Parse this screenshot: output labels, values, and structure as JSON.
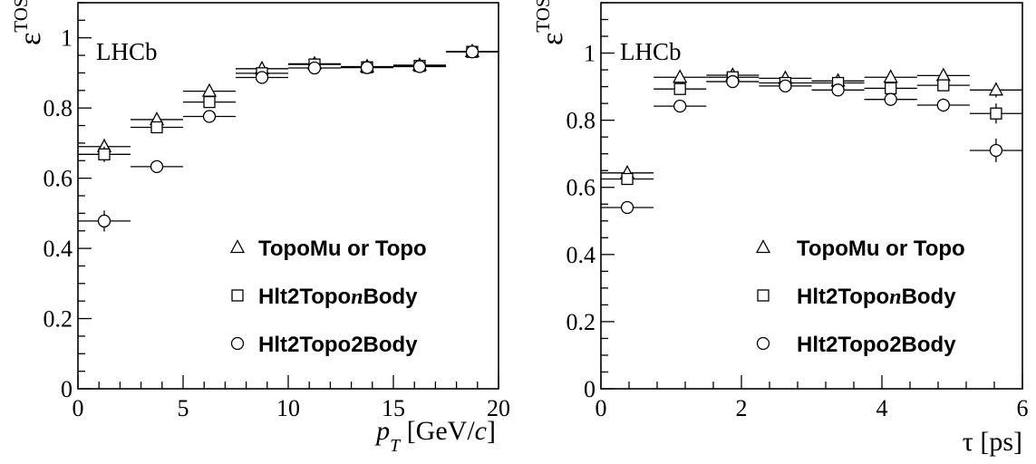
{
  "chart_data": [
    {
      "type": "scatter",
      "experiment_label": "LHCb",
      "ylabel": "ε",
      "ylabel_sup": "TOS",
      "xlabel_var": "p",
      "xlabel_sub": "T",
      "xlabel_unit_pre": " [GeV/",
      "xlabel_unit_var": "c",
      "xlabel_unit_post": "]",
      "xlim": [
        0,
        20
      ],
      "ylim": [
        0,
        1.1
      ],
      "xticks": [
        0,
        5,
        10,
        15,
        20
      ],
      "xtick_labels": [
        "0",
        "5",
        "10",
        "15",
        "20"
      ],
      "yticks": [
        0,
        0.2,
        0.4,
        0.6,
        0.8,
        1
      ],
      "ytick_labels": [
        "0",
        "0.2",
        "0.4",
        "0.6",
        "0.8",
        "1"
      ],
      "legend_position": "bottom-right",
      "series": [
        {
          "name": "TopoMu or Topo",
          "name_pre": "TopoMu or Topo",
          "name_ital": "",
          "name_post": "",
          "marker": "triangle",
          "x": [
            1.25,
            3.75,
            6.25,
            8.75,
            11.25,
            13.75,
            16.25,
            18.75
          ],
          "y": [
            0.69,
            0.767,
            0.848,
            0.912,
            0.926,
            0.918,
            0.922,
            0.961
          ],
          "yerr": [
            0.022,
            0.01,
            0.01,
            0.008,
            0.007,
            0.007,
            0.008,
            0.007
          ]
        },
        {
          "name": "Hlt2TopoNBody",
          "name_pre": "Hlt2Topo",
          "name_ital": "n",
          "name_post": "Body",
          "marker": "square",
          "x": [
            1.25,
            3.75,
            6.25,
            8.75,
            11.25,
            13.75,
            16.25,
            18.75
          ],
          "y": [
            0.668,
            0.745,
            0.817,
            0.899,
            0.924,
            0.916,
            0.92,
            0.96
          ],
          "yerr": [
            0.022,
            0.01,
            0.01,
            0.008,
            0.007,
            0.007,
            0.008,
            0.007
          ]
        },
        {
          "name": "Hlt2Topo2Body",
          "name_pre": "Hlt2Topo2Body",
          "name_ital": "",
          "name_post": "",
          "marker": "circle",
          "x": [
            1.25,
            3.75,
            6.25,
            8.75,
            11.25,
            13.75,
            16.25,
            18.75
          ],
          "y": [
            0.478,
            0.633,
            0.776,
            0.887,
            0.914,
            0.915,
            0.918,
            0.96
          ],
          "yerr": [
            0.03,
            0.01,
            0.01,
            0.008,
            0.007,
            0.007,
            0.008,
            0.007
          ]
        }
      ]
    },
    {
      "type": "scatter",
      "experiment_label": "LHCb",
      "ylabel": "ε",
      "ylabel_sup": "TOS",
      "xlabel_var": "τ",
      "xlabel_sub": "",
      "xlabel_unit_pre": " [ps]",
      "xlabel_unit_var": "",
      "xlabel_unit_post": "",
      "xlim": [
        0,
        6
      ],
      "ylim": [
        0,
        1.15
      ],
      "xticks": [
        0,
        2,
        4,
        6
      ],
      "xtick_labels": [
        "0",
        "2",
        "4",
        "6"
      ],
      "yticks": [
        0,
        0.2,
        0.4,
        0.6,
        0.8,
        1
      ],
      "ytick_labels": [
        "0",
        "0.2",
        "0.4",
        "0.6",
        "0.8",
        "1"
      ],
      "legend_position": "bottom-right",
      "series": [
        {
          "name": "TopoMu or Topo",
          "name_pre": "TopoMu or Topo",
          "name_ital": "",
          "name_post": "",
          "marker": "triangle",
          "x": [
            0.375,
            1.125,
            1.875,
            2.625,
            3.375,
            4.125,
            4.875,
            5.625
          ],
          "y": [
            0.643,
            0.928,
            0.934,
            0.925,
            0.917,
            0.928,
            0.933,
            0.89
          ],
          "yerr": [
            0.012,
            0.012,
            0.01,
            0.01,
            0.01,
            0.012,
            0.014,
            0.022
          ]
        },
        {
          "name": "Hlt2TopoNBody",
          "name_pre": "Hlt2Topo",
          "name_ital": "n",
          "name_post": "Body",
          "marker": "square",
          "x": [
            0.375,
            1.125,
            1.875,
            2.625,
            3.375,
            4.125,
            4.875,
            5.625
          ],
          "y": [
            0.625,
            0.893,
            0.928,
            0.911,
            0.911,
            0.895,
            0.904,
            0.82
          ],
          "yerr": [
            0.012,
            0.012,
            0.01,
            0.01,
            0.01,
            0.012,
            0.016,
            0.03
          ]
        },
        {
          "name": "Hlt2Topo2Body",
          "name_pre": "Hlt2Topo2Body",
          "name_ital": "",
          "name_post": "",
          "marker": "circle",
          "x": [
            0.375,
            1.125,
            1.875,
            2.625,
            3.375,
            4.125,
            4.875,
            5.625
          ],
          "y": [
            0.54,
            0.842,
            0.915,
            0.902,
            0.89,
            0.862,
            0.845,
            0.71
          ],
          "yerr": [
            0.012,
            0.012,
            0.01,
            0.01,
            0.01,
            0.014,
            0.02,
            0.035
          ]
        }
      ]
    }
  ]
}
